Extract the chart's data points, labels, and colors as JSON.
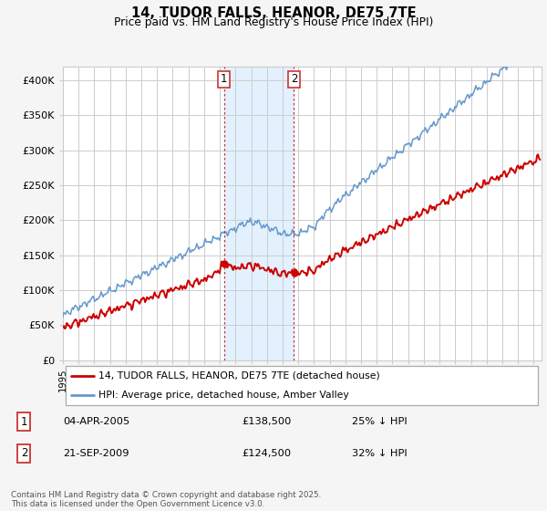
{
  "title": "14, TUDOR FALLS, HEANOR, DE75 7TE",
  "subtitle": "Price paid vs. HM Land Registry's House Price Index (HPI)",
  "ylabel_ticks": [
    "£0",
    "£50K",
    "£100K",
    "£150K",
    "£200K",
    "£250K",
    "£300K",
    "£350K",
    "£400K"
  ],
  "ytick_values": [
    0,
    50000,
    100000,
    150000,
    200000,
    250000,
    300000,
    350000,
    400000
  ],
  "ylim": [
    0,
    420000
  ],
  "xlim_start": 1995.0,
  "xlim_end": 2025.5,
  "marker1_x": 2005.27,
  "marker2_x": 2009.72,
  "legend_line1": "14, TUDOR FALLS, HEANOR, DE75 7TE (detached house)",
  "legend_line2": "HPI: Average price, detached house, Amber Valley",
  "footer": "Contains HM Land Registry data © Crown copyright and database right 2025.\nThis data is licensed under the Open Government Licence v3.0.",
  "line_color_red": "#cc0000",
  "line_color_blue": "#6699cc",
  "shading_color": "#ddeeff",
  "marker_box_color": "#cc0000",
  "background_color": "#f5f5f5",
  "grid_color": "#cccccc",
  "chart_bg": "#ffffff"
}
